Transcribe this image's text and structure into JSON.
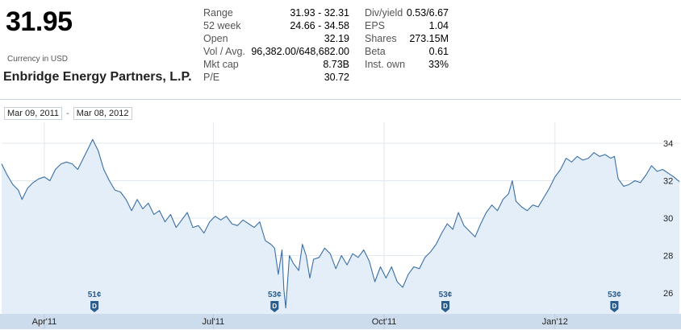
{
  "quote": {
    "price": "31.95",
    "currency": "Currency in USD",
    "company": "Enbridge Energy Partners, L.P."
  },
  "stats_left": [
    {
      "label": "Range",
      "value": "31.93 - 32.31"
    },
    {
      "label": "52 week",
      "value": "24.66 - 34.58"
    },
    {
      "label": "Open",
      "value": "32.19"
    },
    {
      "label": "Vol / Avg.",
      "value": "96,382.00/648,682.00"
    },
    {
      "label": "Mkt cap",
      "value": "8.73B"
    },
    {
      "label": "P/E",
      "value": "30.72"
    }
  ],
  "stats_right": [
    {
      "label": "Div/yield",
      "value": "0.53/6.67"
    },
    {
      "label": "EPS",
      "value": "1.04"
    },
    {
      "label": "Shares",
      "value": "273.15M"
    },
    {
      "label": "Beta",
      "value": "0.61"
    },
    {
      "label": "Inst. own",
      "value": "33%"
    }
  ],
  "date_range": {
    "start": "Mar 09, 2011",
    "end": "Mar 08, 2012",
    "separator": "-"
  },
  "colors": {
    "line": "#3a6fa6",
    "fill": "#e3eef9",
    "grid": "#e2e8ef",
    "axis_band": "#cddcec",
    "marker": "#2a5d8f"
  },
  "chart_data": {
    "type": "area",
    "x_start": "2011-03-09",
    "x_end": "2012-03-08",
    "ylim": [
      25,
      35
    ],
    "yticks": [
      26,
      28,
      30,
      32,
      34
    ],
    "xticks": [
      {
        "date": "2011-04-01",
        "label": "Apr'11"
      },
      {
        "date": "2011-07-01",
        "label": "Jul'11"
      },
      {
        "date": "2011-10-01",
        "label": "Oct'11"
      },
      {
        "date": "2012-01-01",
        "label": "Jan'12"
      }
    ],
    "dividends": [
      {
        "date": "2011-04-28",
        "label": "51¢",
        "marker": "D"
      },
      {
        "date": "2011-08-03",
        "label": "53¢",
        "marker": "D"
      },
      {
        "date": "2011-11-03",
        "label": "53¢",
        "marker": "D"
      },
      {
        "date": "2012-02-02",
        "label": "53¢",
        "marker": "D"
      }
    ],
    "series": [
      {
        "values": [
          [
            "2011-03-09",
            32.9
          ],
          [
            "2011-03-12",
            32.3
          ],
          [
            "2011-03-15",
            31.8
          ],
          [
            "2011-03-18",
            31.5
          ],
          [
            "2011-03-20",
            31.0
          ],
          [
            "2011-03-23",
            31.6
          ],
          [
            "2011-03-26",
            31.9
          ],
          [
            "2011-03-29",
            32.1
          ],
          [
            "2011-04-01",
            32.2
          ],
          [
            "2011-04-04",
            32.0
          ],
          [
            "2011-04-07",
            32.6
          ],
          [
            "2011-04-10",
            32.9
          ],
          [
            "2011-04-13",
            33.0
          ],
          [
            "2011-04-16",
            32.9
          ],
          [
            "2011-04-19",
            32.6
          ],
          [
            "2011-04-22",
            33.2
          ],
          [
            "2011-04-25",
            33.8
          ],
          [
            "2011-04-27",
            34.2
          ],
          [
            "2011-04-30",
            33.6
          ],
          [
            "2011-05-03",
            32.6
          ],
          [
            "2011-05-06",
            32.0
          ],
          [
            "2011-05-09",
            31.5
          ],
          [
            "2011-05-12",
            31.4
          ],
          [
            "2011-05-15",
            31.0
          ],
          [
            "2011-05-18",
            30.4
          ],
          [
            "2011-05-21",
            31.0
          ],
          [
            "2011-05-24",
            30.5
          ],
          [
            "2011-05-27",
            30.8
          ],
          [
            "2011-05-30",
            30.2
          ],
          [
            "2011-06-02",
            30.4
          ],
          [
            "2011-06-05",
            29.8
          ],
          [
            "2011-06-08",
            30.2
          ],
          [
            "2011-06-11",
            29.5
          ],
          [
            "2011-06-14",
            29.9
          ],
          [
            "2011-06-17",
            30.3
          ],
          [
            "2011-06-20",
            29.5
          ],
          [
            "2011-06-23",
            29.6
          ],
          [
            "2011-06-26",
            29.2
          ],
          [
            "2011-06-29",
            29.8
          ],
          [
            "2011-07-02",
            30.1
          ],
          [
            "2011-07-05",
            29.9
          ],
          [
            "2011-07-08",
            30.1
          ],
          [
            "2011-07-11",
            29.7
          ],
          [
            "2011-07-14",
            29.6
          ],
          [
            "2011-07-17",
            29.9
          ],
          [
            "2011-07-20",
            29.7
          ],
          [
            "2011-07-23",
            29.5
          ],
          [
            "2011-07-26",
            29.8
          ],
          [
            "2011-07-29",
            28.8
          ],
          [
            "2011-08-01",
            28.6
          ],
          [
            "2011-08-03",
            28.4
          ],
          [
            "2011-08-05",
            27.0
          ],
          [
            "2011-08-07",
            28.3
          ],
          [
            "2011-08-08",
            26.2
          ],
          [
            "2011-08-09",
            25.2
          ],
          [
            "2011-08-11",
            28.0
          ],
          [
            "2011-08-13",
            27.6
          ],
          [
            "2011-08-16",
            27.2
          ],
          [
            "2011-08-18",
            28.6
          ],
          [
            "2011-08-20",
            28.0
          ],
          [
            "2011-08-22",
            26.8
          ],
          [
            "2011-08-24",
            27.8
          ],
          [
            "2011-08-27",
            27.9
          ],
          [
            "2011-08-30",
            28.4
          ],
          [
            "2011-09-02",
            28.1
          ],
          [
            "2011-09-05",
            27.3
          ],
          [
            "2011-09-08",
            28.0
          ],
          [
            "2011-09-11",
            27.5
          ],
          [
            "2011-09-14",
            28.1
          ],
          [
            "2011-09-17",
            27.9
          ],
          [
            "2011-09-20",
            28.3
          ],
          [
            "2011-09-23",
            27.7
          ],
          [
            "2011-09-26",
            26.6
          ],
          [
            "2011-09-29",
            27.4
          ],
          [
            "2011-10-02",
            26.8
          ],
          [
            "2011-10-05",
            27.4
          ],
          [
            "2011-10-08",
            26.6
          ],
          [
            "2011-10-11",
            26.3
          ],
          [
            "2011-10-14",
            27.0
          ],
          [
            "2011-10-17",
            27.4
          ],
          [
            "2011-10-20",
            27.3
          ],
          [
            "2011-10-23",
            27.9
          ],
          [
            "2011-10-26",
            28.2
          ],
          [
            "2011-10-29",
            28.6
          ],
          [
            "2011-11-01",
            29.2
          ],
          [
            "2011-11-04",
            29.7
          ],
          [
            "2011-11-07",
            29.4
          ],
          [
            "2011-11-10",
            30.3
          ],
          [
            "2011-11-13",
            29.6
          ],
          [
            "2011-11-16",
            29.3
          ],
          [
            "2011-11-19",
            29.0
          ],
          [
            "2011-11-22",
            29.7
          ],
          [
            "2011-11-25",
            30.3
          ],
          [
            "2011-11-28",
            30.7
          ],
          [
            "2011-12-01",
            30.4
          ],
          [
            "2011-12-04",
            31.0
          ],
          [
            "2011-12-07",
            31.3
          ],
          [
            "2011-12-09",
            32.0
          ],
          [
            "2011-12-11",
            30.9
          ],
          [
            "2011-12-14",
            30.6
          ],
          [
            "2011-12-17",
            30.4
          ],
          [
            "2011-12-20",
            30.7
          ],
          [
            "2011-12-23",
            30.6
          ],
          [
            "2011-12-26",
            31.1
          ],
          [
            "2011-12-29",
            31.6
          ],
          [
            "2012-01-01",
            32.2
          ],
          [
            "2012-01-04",
            32.6
          ],
          [
            "2012-01-07",
            33.2
          ],
          [
            "2012-01-10",
            33.0
          ],
          [
            "2012-01-13",
            33.3
          ],
          [
            "2012-01-16",
            33.1
          ],
          [
            "2012-01-19",
            33.2
          ],
          [
            "2012-01-22",
            33.5
          ],
          [
            "2012-01-25",
            33.3
          ],
          [
            "2012-01-28",
            33.4
          ],
          [
            "2012-01-31",
            33.2
          ],
          [
            "2012-02-02",
            33.3
          ],
          [
            "2012-02-04",
            32.1
          ],
          [
            "2012-02-07",
            31.7
          ],
          [
            "2012-02-10",
            31.8
          ],
          [
            "2012-02-13",
            32.0
          ],
          [
            "2012-02-16",
            31.9
          ],
          [
            "2012-02-19",
            32.3
          ],
          [
            "2012-02-22",
            32.8
          ],
          [
            "2012-02-25",
            32.5
          ],
          [
            "2012-02-28",
            32.6
          ],
          [
            "2012-03-02",
            32.4
          ],
          [
            "2012-03-05",
            32.2
          ],
          [
            "2012-03-08",
            31.95
          ]
        ]
      }
    ]
  }
}
